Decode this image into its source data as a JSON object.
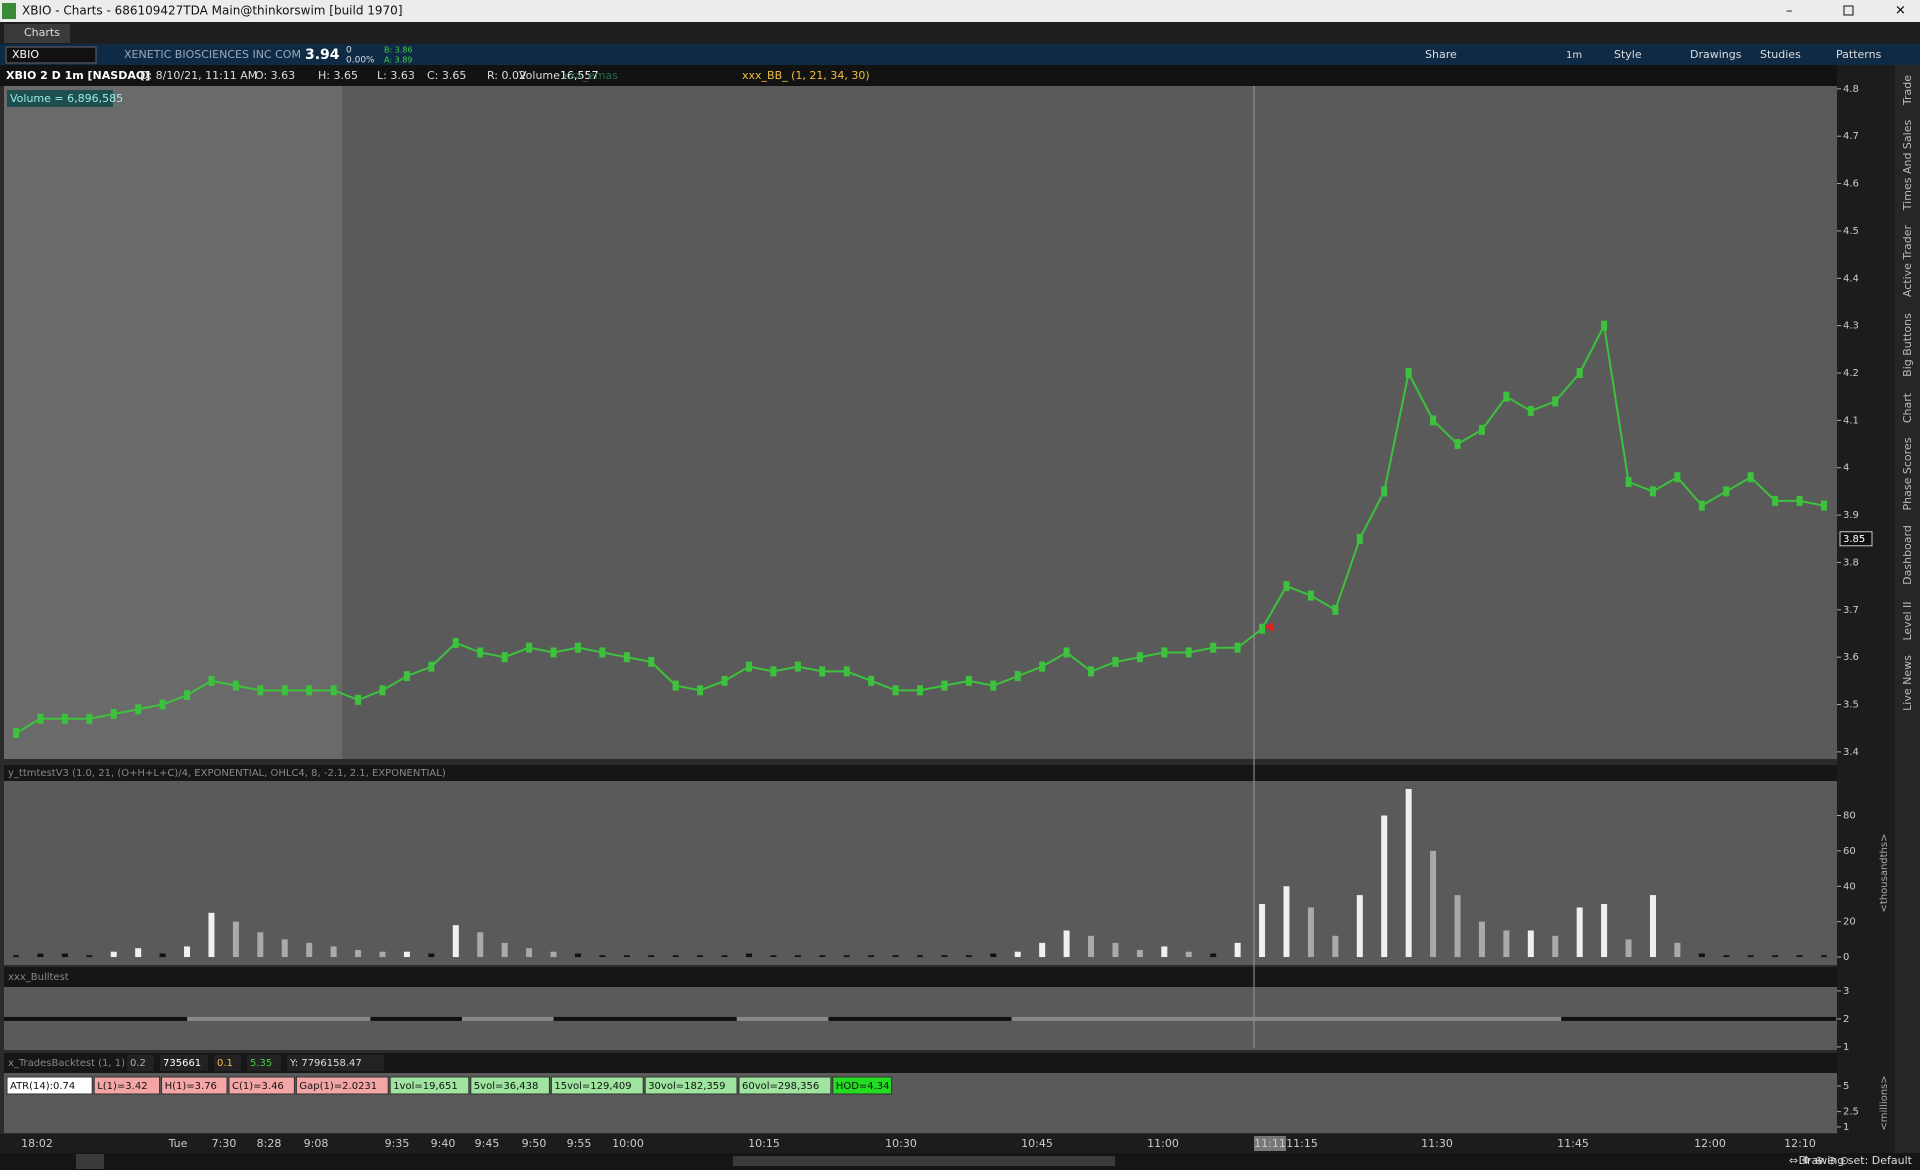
{
  "window": {
    "title": "XBIO - Charts - 686109427TDA Main@thinkorswim [build 1970]",
    "tab": "Charts"
  },
  "symbol_bar": {
    "symbol": "XBIO",
    "name": "XENETIC BIOSCIENCES INC COM",
    "last": "3.94",
    "change": "0",
    "change_pct": "0.00%",
    "bid": "B: 3.86",
    "ask": "A: 3.89",
    "timeframe": "1m",
    "buttons": [
      "Share",
      "Style",
      "Drawings",
      "Studies",
      "Patterns"
    ]
  },
  "info_bar": [
    "XBIO 2 D 1m [NASDAQ]",
    "D: 8/10/21, 11:11 AM",
    "O: 3.63",
    "H: 3.65",
    "L: 3.63",
    "C: 3.65",
    "R: 0.02",
    "Volume",
    "16,557",
    "xxx_emas",
    "xxx_BB_ (1, 21, 34, 30)"
  ],
  "volume_label": "Volume = 6,896,585",
  "side_tabs": [
    "Trade",
    "Times And Sales",
    "Active Trader",
    "Big Buttons",
    "Chart",
    "Phase Scores",
    "Dashboard",
    "Level II",
    "Live News"
  ],
  "chart_data": [
    {
      "type": "line",
      "name": "price",
      "color": "#3cc23c",
      "values": [
        3.44,
        3.47,
        3.47,
        3.47,
        3.48,
        3.49,
        3.5,
        3.52,
        3.55,
        3.54,
        3.53,
        3.53,
        3.53,
        3.53,
        3.51,
        3.53,
        3.56,
        3.58,
        3.63,
        3.61,
        3.6,
        3.62,
        3.61,
        3.62,
        3.61,
        3.6,
        3.59,
        3.54,
        3.53,
        3.55,
        3.58,
        3.57,
        3.58,
        3.57,
        3.57,
        3.55,
        3.53,
        3.53,
        3.54,
        3.55,
        3.54,
        3.56,
        3.58,
        3.61,
        3.57,
        3.59,
        3.6,
        3.61,
        3.61,
        3.62,
        3.62,
        3.66,
        3.75,
        3.73,
        3.7,
        3.85,
        3.95,
        4.2,
        4.1,
        4.05,
        4.08,
        4.15,
        4.12,
        4.14,
        4.2,
        4.3,
        3.97,
        3.95,
        3.98,
        3.92,
        3.95,
        3.98,
        3.93,
        3.93,
        3.92
      ],
      "ylim": [
        3.385,
        4.806
      ],
      "yticks": [
        3.4,
        3.5,
        3.6,
        3.7,
        3.8,
        3.9,
        4,
        4.1,
        4.2,
        4.3,
        4.4,
        4.5,
        4.6,
        4.7,
        4.8
      ],
      "price_tag": 3.85
    },
    {
      "type": "bar",
      "title": "y_ttmtestV3 (1.0, 21, (O+H+L+C)/4, EXPONENTIAL, OHLC4, 8, -2.1, 2.1, EXPONENTIAL)",
      "color": "#f0f0f0",
      "values": [
        1,
        2,
        2,
        1,
        3,
        5,
        2,
        6,
        25,
        20,
        14,
        10,
        8,
        6,
        4,
        3,
        3,
        2,
        18,
        14,
        8,
        5,
        3,
        2,
        1,
        1,
        1,
        1,
        1,
        1,
        2,
        1,
        1,
        1,
        1,
        1,
        1,
        1,
        1,
        1,
        2,
        3,
        8,
        15,
        12,
        8,
        4,
        6,
        3,
        2,
        8,
        30,
        40,
        28,
        12,
        35,
        80,
        95,
        60,
        35,
        20,
        15,
        15,
        12,
        28,
        30,
        10,
        35,
        8,
        2,
        1,
        1,
        1,
        1,
        1
      ],
      "ylim": [
        -4.5,
        99.5
      ],
      "yticks": [
        0,
        20,
        40,
        60,
        80
      ],
      "axis_label": "<thousandths>"
    },
    {
      "type": "step",
      "title": "xxx_Bulltest",
      "values": [
        2,
        2,
        2,
        2,
        2,
        2,
        2,
        2,
        2,
        2,
        2,
        2,
        2,
        2,
        2,
        2,
        2,
        2,
        2,
        2
      ],
      "colors": [
        "#111",
        "#111",
        "#888",
        "#888",
        "#111",
        "#888",
        "#111",
        "#111",
        "#888",
        "#111",
        "#111",
        "#888",
        "#888",
        "#888",
        "#888",
        "#888",
        "#888",
        "#111",
        "#111",
        "#111"
      ],
      "ylim": [
        0.89,
        3.14
      ],
      "yticks": [
        1,
        2,
        3
      ]
    },
    {
      "type": "chips",
      "title": "x_TradesBacktest (1, 1)",
      "header_values": [
        "0.2",
        "735661",
        "0.1",
        "5.35",
        "Y: 7796158.47"
      ],
      "chips": [
        {
          "text": "ATR(14):0.74",
          "color": "#ffffff"
        },
        {
          "text": "L(1)=3.42",
          "color": "#f4a6a6"
        },
        {
          "text": "H(1)=3.76",
          "color": "#f4a6a6"
        },
        {
          "text": "C(1)=3.46",
          "color": "#f4a6a6"
        },
        {
          "text": "Gap(1)=2.0231",
          "color": "#f4a6a6"
        },
        {
          "text": "1vol=19,651",
          "color": "#9fe59f"
        },
        {
          "text": "5vol=36,438",
          "color": "#9fe59f"
        },
        {
          "text": "15vol=129,409",
          "color": "#9fe59f"
        },
        {
          "text": "30vol=182,359",
          "color": "#9fe59f"
        },
        {
          "text": "60vol=298,356",
          "color": "#9fe59f"
        },
        {
          "text": "HOD=4.34",
          "color": "#22dd22"
        }
      ],
      "ylim": [
        0.41,
        6.27
      ],
      "yticks": [
        1,
        2.5,
        5
      ],
      "axis_label": "<millions>"
    }
  ],
  "time_axis": [
    "18:02",
    "Tue",
    "7:30",
    "8:28",
    "9:08",
    "9:35",
    "9:40",
    "9:45",
    "9:50",
    "9:55",
    "10:00",
    "10:15",
    "10:30",
    "10:45",
    "11:00",
    "11:11",
    "11:15",
    "11:30",
    "11:45",
    "12:00",
    "12:10"
  ],
  "status": "Drawing set: Default"
}
